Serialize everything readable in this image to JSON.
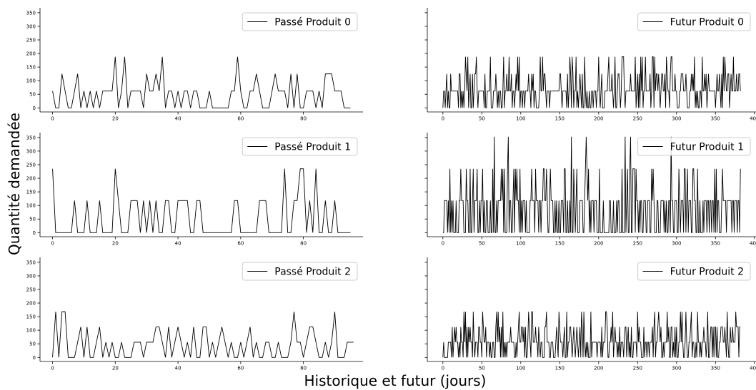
{
  "figure": {
    "xlabel": "Historique et futur (jours)",
    "ylabel": "Quantité demandée"
  },
  "chart_data": [
    {
      "type": "line",
      "panel": "past",
      "legend": "Passé Produit 0",
      "ylim": [
        -15,
        368
      ],
      "xlim": [
        -4,
        99
      ],
      "x_ticks": [
        0,
        20,
        40,
        60,
        80
      ],
      "y_ticks": [
        0,
        50,
        100,
        150,
        200,
        250,
        300,
        350
      ],
      "series": [
        {
          "name": "Passé Produit 0",
          "values": [
            62,
            0,
            0,
            125,
            62,
            0,
            0,
            62,
            125,
            0,
            62,
            0,
            62,
            0,
            62,
            0,
            62,
            62,
            62,
            62,
            188,
            0,
            62,
            188,
            0,
            62,
            62,
            62,
            62,
            0,
            125,
            62,
            62,
            125,
            62,
            188,
            0,
            62,
            62,
            0,
            62,
            0,
            62,
            62,
            0,
            62,
            62,
            0,
            0,
            0,
            62,
            0,
            0,
            0,
            0,
            0,
            0,
            62,
            62,
            188,
            62,
            0,
            0,
            62,
            62,
            125,
            62,
            0,
            0,
            0,
            62,
            125,
            62,
            62,
            62,
            0,
            125,
            0,
            125,
            0,
            0,
            62,
            62,
            62,
            0,
            62,
            0,
            125,
            125,
            125,
            62,
            62,
            62,
            0,
            0,
            0
          ]
        }
      ],
      "xlabel": "",
      "ylabel": ""
    },
    {
      "type": "line",
      "panel": "future",
      "legend": "Futur Produit 0",
      "ylim": [
        -15,
        368
      ],
      "xlim": [
        -20,
        402
      ],
      "x_ticks": [
        0,
        50,
        100,
        150,
        200,
        250,
        300,
        350,
        400
      ],
      "y_ticks": [
        0,
        50,
        100,
        150,
        200,
        250,
        300,
        350
      ],
      "series": [
        {
          "name": "Futur Produit 0",
          "seed": 11,
          "n": 383,
          "levels": [
            0,
            62,
            125,
            188
          ],
          "probs": [
            0.25,
            0.48,
            0.18,
            0.09
          ]
        }
      ],
      "xlabel": "",
      "ylabel": ""
    },
    {
      "type": "line",
      "panel": "past",
      "legend": "Passé Produit 1",
      "ylim": [
        -15,
        368
      ],
      "xlim": [
        -4,
        99
      ],
      "x_ticks": [
        0,
        20,
        40,
        60,
        80
      ],
      "y_ticks": [
        0,
        50,
        100,
        150,
        200,
        250,
        300,
        350
      ],
      "series": [
        {
          "name": "Passé Produit 1",
          "values": [
            235,
            0,
            0,
            0,
            0,
            0,
            0,
            118,
            0,
            0,
            0,
            118,
            0,
            0,
            0,
            118,
            0,
            0,
            0,
            0,
            235,
            118,
            0,
            0,
            0,
            118,
            118,
            118,
            0,
            118,
            0,
            118,
            0,
            118,
            0,
            0,
            118,
            118,
            0,
            0,
            118,
            118,
            118,
            118,
            0,
            0,
            118,
            118,
            0,
            0,
            0,
            0,
            0,
            0,
            0,
            0,
            0,
            0,
            118,
            118,
            0,
            0,
            0,
            0,
            0,
            0,
            118,
            118,
            118,
            0,
            0,
            0,
            0,
            0,
            235,
            0,
            0,
            118,
            118,
            235,
            235,
            0,
            118,
            0,
            235,
            0,
            0,
            118,
            0,
            0,
            118,
            0,
            0,
            0,
            0,
            0
          ]
        }
      ],
      "xlabel": "",
      "ylabel": ""
    },
    {
      "type": "line",
      "panel": "future",
      "legend": "Futur Produit 1",
      "ylim": [
        -15,
        368
      ],
      "xlim": [
        -20,
        402
      ],
      "x_ticks": [
        0,
        50,
        100,
        150,
        200,
        250,
        300,
        350,
        400
      ],
      "y_ticks": [
        0,
        50,
        100,
        150,
        200,
        250,
        300,
        350
      ],
      "series": [
        {
          "name": "Futur Produit 1",
          "seed": 23,
          "n": 383,
          "levels": [
            0,
            118,
            235,
            353
          ],
          "probs": [
            0.42,
            0.42,
            0.135,
            0.025
          ],
          "last": 235
        }
      ],
      "xlabel": "",
      "ylabel": ""
    },
    {
      "type": "line",
      "panel": "past",
      "legend": "Passé Produit 2",
      "ylim": [
        -15,
        368
      ],
      "xlim": [
        -4,
        99
      ],
      "x_ticks": [
        0,
        20,
        40,
        60,
        80
      ],
      "y_ticks": [
        0,
        50,
        100,
        150,
        200,
        250,
        300,
        350
      ],
      "series": [
        {
          "name": "Passé Produit 2",
          "values": [
            0,
            168,
            0,
            168,
            168,
            0,
            0,
            0,
            56,
            112,
            0,
            112,
            0,
            0,
            56,
            112,
            0,
            56,
            0,
            56,
            0,
            0,
            56,
            0,
            0,
            0,
            56,
            56,
            56,
            0,
            56,
            56,
            56,
            112,
            112,
            56,
            0,
            112,
            0,
            56,
            112,
            56,
            0,
            56,
            0,
            112,
            0,
            0,
            112,
            112,
            0,
            56,
            0,
            56,
            112,
            56,
            0,
            56,
            0,
            0,
            56,
            0,
            56,
            112,
            0,
            56,
            0,
            0,
            56,
            56,
            0,
            0,
            56,
            0,
            0,
            0,
            56,
            168,
            56,
            56,
            0,
            56,
            112,
            112,
            56,
            0,
            0,
            56,
            0,
            56,
            168,
            0,
            0,
            0,
            56,
            56,
            56
          ]
        }
      ],
      "xlabel": "",
      "ylabel": ""
    },
    {
      "type": "line",
      "panel": "future",
      "legend": "Futur Produit 2",
      "ylim": [
        -15,
        368
      ],
      "xlim": [
        -20,
        402
      ],
      "x_ticks": [
        0,
        50,
        100,
        150,
        200,
        250,
        300,
        350,
        400
      ],
      "y_ticks": [
        0,
        50,
        100,
        150,
        200,
        250,
        300,
        350
      ],
      "series": [
        {
          "name": "Futur Produit 2",
          "seed": 37,
          "n": 383,
          "levels": [
            0,
            56,
            112,
            168
          ],
          "probs": [
            0.3,
            0.45,
            0.18,
            0.07
          ],
          "last": 112
        }
      ],
      "xlabel": "",
      "ylabel": ""
    }
  ]
}
